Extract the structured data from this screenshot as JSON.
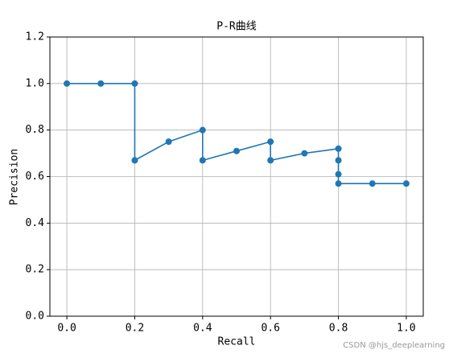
{
  "chart_data": {
    "type": "line",
    "title": "P-R曲线",
    "x_label": "Recall",
    "y_label": "Precision",
    "watermark": "CSDN @hjs_deeplearning",
    "x": [
      0.0,
      0.1,
      0.2,
      0.2,
      0.3,
      0.4,
      0.4,
      0.5,
      0.6,
      0.6,
      0.7,
      0.8,
      0.8,
      0.8,
      0.8,
      0.9,
      1.0
    ],
    "series": [
      {
        "name": "P-R",
        "color": "#1f77b4",
        "values": [
          1.0,
          1.0,
          1.0,
          0.67,
          0.75,
          0.8,
          0.67,
          0.71,
          0.75,
          0.67,
          0.7,
          0.72,
          0.67,
          0.61,
          0.57,
          0.57,
          0.57
        ]
      }
    ],
    "xlim": [
      -0.05,
      1.05
    ],
    "ylim": [
      0,
      1.2
    ],
    "xticks": [
      {
        "value": 0,
        "label": "0.0"
      },
      0.2,
      0.4,
      0.6,
      0.8,
      {
        "value": 1,
        "label": "1.0"
      }
    ],
    "yticks": [
      {
        "value": 0,
        "label": "0.0"
      },
      0.2,
      0.4,
      0.6,
      0.8,
      {
        "value": 1,
        "label": "1.0"
      },
      1.2
    ],
    "grid": true
  }
}
